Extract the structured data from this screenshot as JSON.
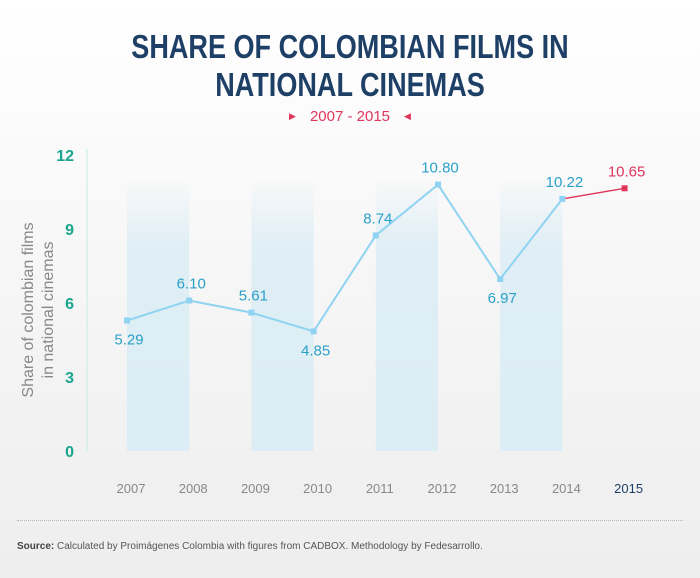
{
  "title_line1": "SHARE OF COLOMBIAN FILMS IN",
  "title_line2": "NATIONAL CINEMAS",
  "subtitle": "2007 - 2015",
  "source_label": "Source:",
  "source_text": "Calculated by Proimágenes Colombia with figures from CADBOX. Methodology by Fedesarrollo.",
  "colors": {
    "title": "#1e3f66",
    "line": "#8fd3f2",
    "highlight": "#e0355b",
    "value_label": "#2aa0c8",
    "y_ticks": "#1aa58e",
    "band": "#dcedf5"
  },
  "chart_data": {
    "type": "line",
    "title": "SHARE OF COLOMBIAN FILMS IN NATIONAL CINEMAS",
    "subtitle": "2007 - 2015",
    "ylabel": "Share of colombian films in national cinemas",
    "ylabel_lines": [
      "Share of colombian films",
      "in national cinemas"
    ],
    "xlabel": "",
    "x": [
      "2007",
      "2008",
      "2009",
      "2010",
      "2011",
      "2012",
      "2013",
      "2014",
      "2015"
    ],
    "values": [
      5.29,
      6.1,
      5.61,
      4.85,
      8.74,
      10.8,
      6.97,
      10.22,
      10.65
    ],
    "value_labels": [
      "5.29",
      "6.10",
      "5.61",
      "4.85",
      "8.74",
      "10.80",
      "6.97",
      "10.22",
      "10.65"
    ],
    "highlighted": "2015",
    "yticks": [
      0,
      3,
      6,
      9,
      12
    ],
    "ylim": [
      0,
      12
    ],
    "shaded_bands": [
      [
        "2007",
        "2008"
      ],
      [
        "2009",
        "2010"
      ],
      [
        "2011",
        "2012"
      ],
      [
        "2013",
        "2014"
      ]
    ]
  }
}
